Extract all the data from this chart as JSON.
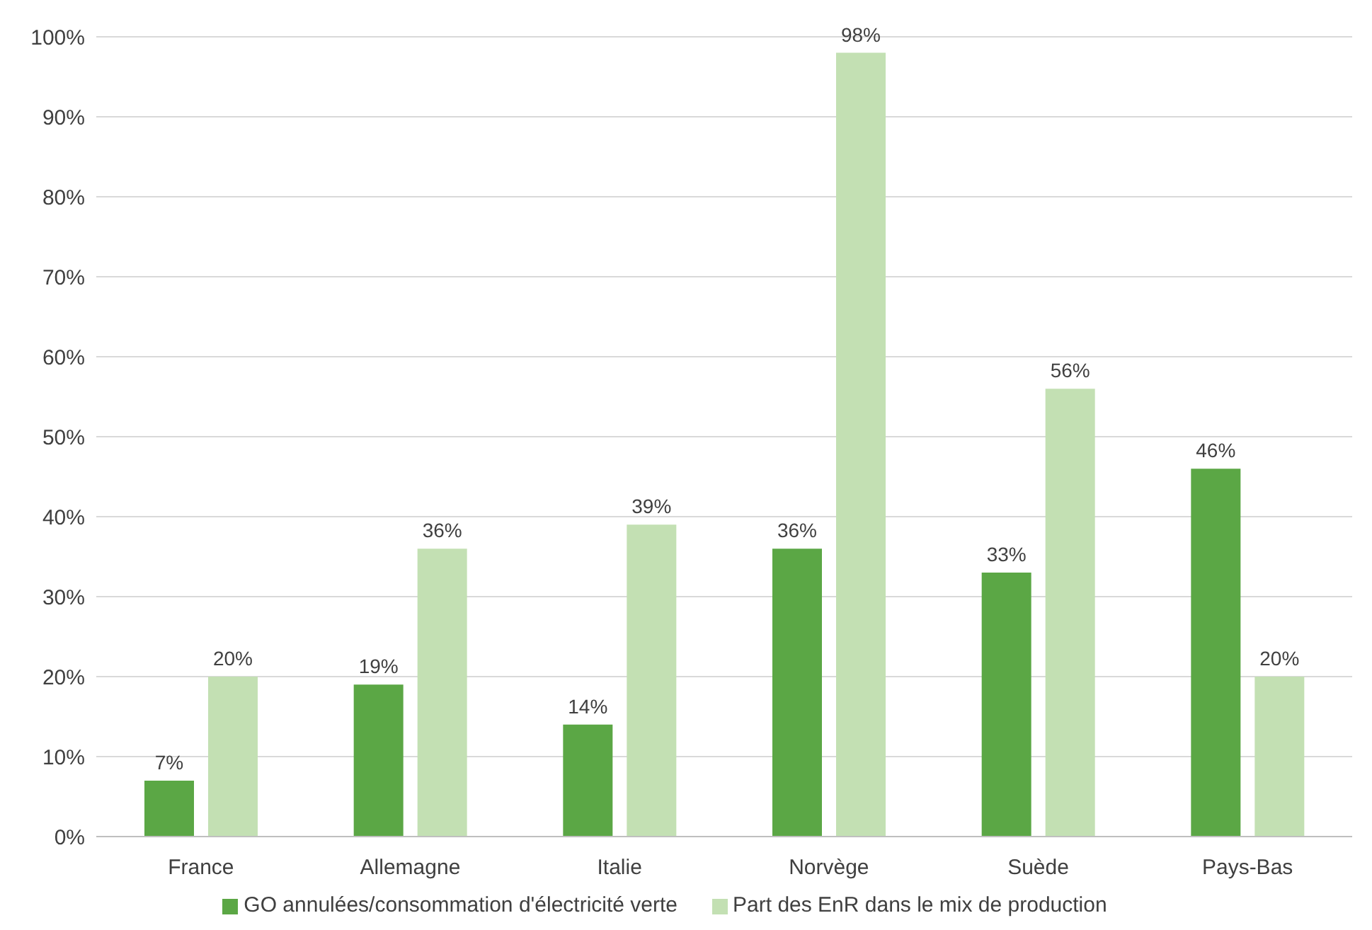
{
  "chart_data": {
    "type": "bar",
    "categories": [
      "France",
      "Allemagne",
      "Italie",
      "Norvège",
      "Suède",
      "Pays-Bas"
    ],
    "series": [
      {
        "name": "GO annulées/consommation d'électricité verte",
        "color": "#5ba745",
        "values": [
          7,
          19,
          14,
          36,
          33,
          46
        ],
        "value_labels": [
          "7%",
          "19%",
          "14%",
          "36%",
          "33%",
          "46%"
        ]
      },
      {
        "name": "Part des EnR dans le mix de production",
        "color": "#c3e0b3",
        "values": [
          20,
          36,
          39,
          98,
          56,
          20
        ],
        "value_labels": [
          "20%",
          "36%",
          "39%",
          "98%",
          "56%",
          "20%"
        ]
      }
    ],
    "ylim": [
      0,
      100
    ],
    "yticks": [
      {
        "value": 0,
        "label": "0%"
      },
      {
        "value": 10,
        "label": "10%"
      },
      {
        "value": 20,
        "label": "20%"
      },
      {
        "value": 30,
        "label": "30%"
      },
      {
        "value": 40,
        "label": "40%"
      },
      {
        "value": 50,
        "label": "50%"
      },
      {
        "value": 60,
        "label": "60%"
      },
      {
        "value": 70,
        "label": "70%"
      },
      {
        "value": 80,
        "label": "80%"
      },
      {
        "value": 90,
        "label": "90%"
      },
      {
        "value": 100,
        "label": "100%"
      }
    ],
    "grid": "y",
    "legend": "bottom"
  }
}
